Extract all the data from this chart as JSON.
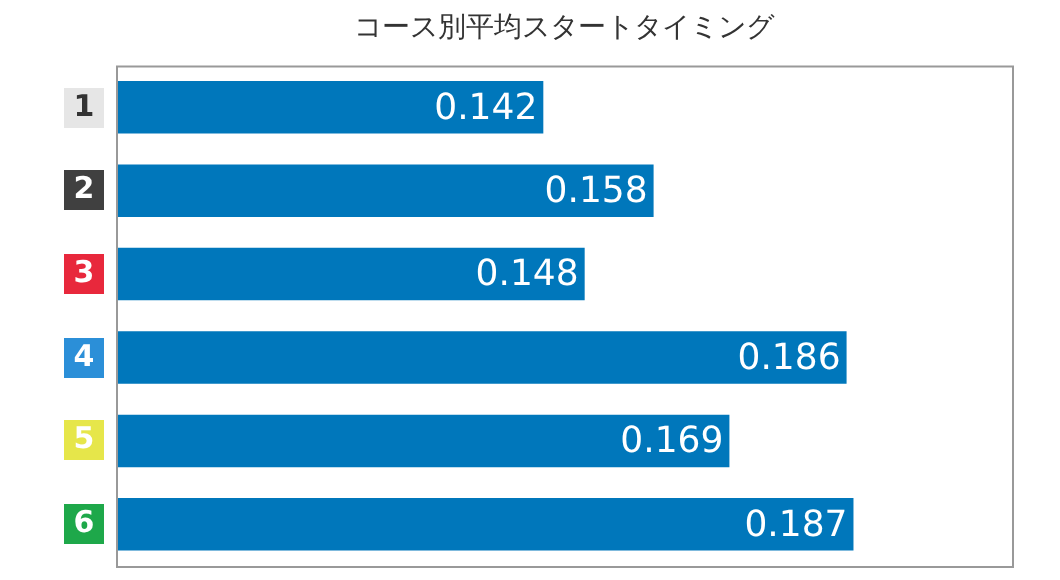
{
  "chart_data": {
    "type": "bar",
    "orientation": "horizontal",
    "title": "コース別平均スタートタイミング",
    "categories": [
      "1",
      "2",
      "3",
      "4",
      "5",
      "6"
    ],
    "values": [
      0.142,
      0.158,
      0.148,
      0.186,
      0.169,
      0.187
    ],
    "color": "#0077bb",
    "xlim": [
      0.08,
      0.21
    ],
    "data_labels": true,
    "legend": false,
    "tick_labels": "y"
  }
}
